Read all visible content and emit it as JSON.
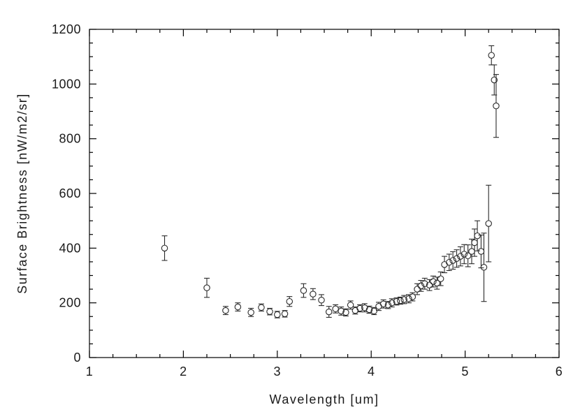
{
  "figure": {
    "background": "#ffffff",
    "axis_color": "#000000",
    "marker_color": "#2a2a2a"
  },
  "chart_data": {
    "type": "scatter",
    "title": "",
    "xlabel": "Wavelength [um]",
    "ylabel": "Surface Brightness [nW/m2/sr]",
    "xlim": [
      1,
      6
    ],
    "ylim": [
      0,
      1200
    ],
    "xticks": [
      1,
      2,
      3,
      4,
      5,
      6
    ],
    "yticks": [
      0,
      200,
      400,
      600,
      800,
      1000,
      1200
    ],
    "x_minor_step": 0.25,
    "y_minor_step": 50,
    "grid": false,
    "legend": null,
    "marker": "open-circle",
    "error_bars": true,
    "points": [
      {
        "x": 1.8,
        "y": 400,
        "err": 45
      },
      {
        "x": 2.25,
        "y": 255,
        "err": 35
      },
      {
        "x": 2.45,
        "y": 172,
        "err": 15
      },
      {
        "x": 2.58,
        "y": 185,
        "err": 15
      },
      {
        "x": 2.72,
        "y": 165,
        "err": 15
      },
      {
        "x": 2.83,
        "y": 183,
        "err": 13
      },
      {
        "x": 2.92,
        "y": 168,
        "err": 12
      },
      {
        "x": 3.0,
        "y": 157,
        "err": 12
      },
      {
        "x": 3.08,
        "y": 160,
        "err": 12
      },
      {
        "x": 3.13,
        "y": 205,
        "err": 18
      },
      {
        "x": 3.28,
        "y": 245,
        "err": 25
      },
      {
        "x": 3.38,
        "y": 232,
        "err": 20
      },
      {
        "x": 3.47,
        "y": 210,
        "err": 20
      },
      {
        "x": 3.55,
        "y": 167,
        "err": 20
      },
      {
        "x": 3.62,
        "y": 178,
        "err": 15
      },
      {
        "x": 3.68,
        "y": 170,
        "err": 15
      },
      {
        "x": 3.73,
        "y": 165,
        "err": 13
      },
      {
        "x": 3.78,
        "y": 192,
        "err": 15
      },
      {
        "x": 3.83,
        "y": 172,
        "err": 13
      },
      {
        "x": 3.88,
        "y": 180,
        "err": 13
      },
      {
        "x": 3.93,
        "y": 182,
        "err": 15
      },
      {
        "x": 3.98,
        "y": 175,
        "err": 13
      },
      {
        "x": 4.03,
        "y": 170,
        "err": 13
      },
      {
        "x": 4.08,
        "y": 187,
        "err": 15
      },
      {
        "x": 4.13,
        "y": 196,
        "err": 15
      },
      {
        "x": 4.18,
        "y": 192,
        "err": 13
      },
      {
        "x": 4.22,
        "y": 200,
        "err": 15
      },
      {
        "x": 4.27,
        "y": 205,
        "err": 13
      },
      {
        "x": 4.31,
        "y": 208,
        "err": 13
      },
      {
        "x": 4.35,
        "y": 212,
        "err": 15
      },
      {
        "x": 4.4,
        "y": 215,
        "err": 15
      },
      {
        "x": 4.44,
        "y": 222,
        "err": 15
      },
      {
        "x": 4.49,
        "y": 250,
        "err": 20
      },
      {
        "x": 4.53,
        "y": 262,
        "err": 20
      },
      {
        "x": 4.57,
        "y": 270,
        "err": 20
      },
      {
        "x": 4.62,
        "y": 265,
        "err": 20
      },
      {
        "x": 4.66,
        "y": 278,
        "err": 20
      },
      {
        "x": 4.7,
        "y": 272,
        "err": 22
      },
      {
        "x": 4.74,
        "y": 288,
        "err": 25
      },
      {
        "x": 4.78,
        "y": 340,
        "err": 30
      },
      {
        "x": 4.83,
        "y": 348,
        "err": 30
      },
      {
        "x": 4.87,
        "y": 355,
        "err": 32
      },
      {
        "x": 4.91,
        "y": 362,
        "err": 32
      },
      {
        "x": 4.95,
        "y": 370,
        "err": 35
      },
      {
        "x": 4.99,
        "y": 378,
        "err": 35
      },
      {
        "x": 5.03,
        "y": 372,
        "err": 40
      },
      {
        "x": 5.07,
        "y": 388,
        "err": 45
      },
      {
        "x": 5.1,
        "y": 420,
        "err": 50
      },
      {
        "x": 5.13,
        "y": 445,
        "err": 55
      },
      {
        "x": 5.17,
        "y": 388,
        "err": 60
      },
      {
        "x": 5.2,
        "y": 330,
        "err": 125
      },
      {
        "x": 5.25,
        "y": 490,
        "err": 140
      },
      {
        "x": 5.28,
        "y": 1105,
        "err": 35
      },
      {
        "x": 5.31,
        "y": 1015,
        "err": 55
      },
      {
        "x": 5.33,
        "y": 920,
        "err": 115
      }
    ]
  }
}
